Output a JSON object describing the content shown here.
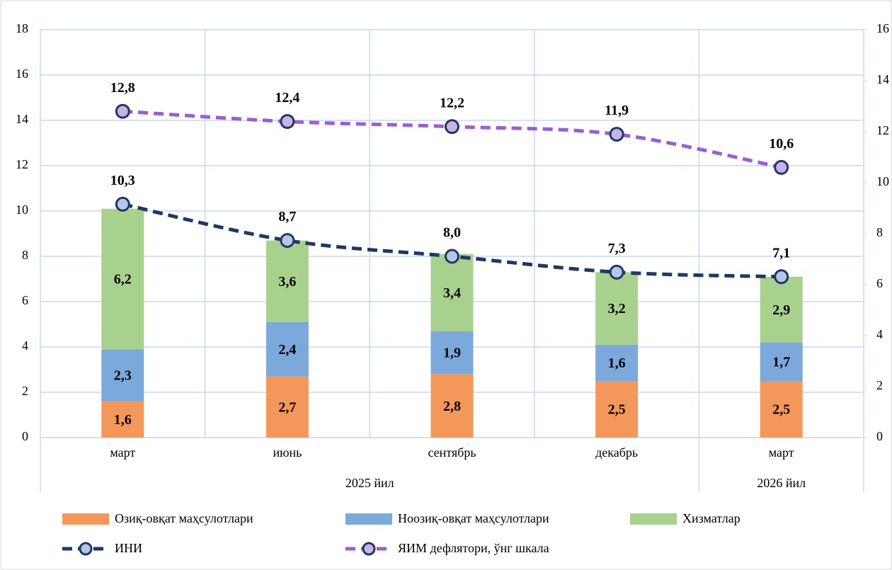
{
  "chart_data": {
    "type": "bar_line_combo",
    "stacked": true,
    "categories": [
      "март",
      "июнь",
      "сентябрь",
      "декабрь",
      "март"
    ],
    "groups": [
      {
        "label": "2025 йил",
        "from": 0,
        "to": 3
      },
      {
        "label": "2026 йил",
        "from": 4,
        "to": 4
      }
    ],
    "series": [
      {
        "name": "Озиқ-овқат маҳсулотлари",
        "type": "bar",
        "color": "#f4975a",
        "values": [
          1.6,
          2.7,
          2.8,
          2.5,
          2.5
        ],
        "value_labels": [
          "1,6",
          "2,7",
          "2,8",
          "2,5",
          "2,5"
        ]
      },
      {
        "name": "Ноозиқ-овқат маҳсулотлари",
        "type": "bar",
        "color": "#7ba9dc",
        "values": [
          2.3,
          2.4,
          1.9,
          1.6,
          1.7
        ],
        "value_labels": [
          "2,3",
          "2,4",
          "1,9",
          "1,6",
          "1,7"
        ]
      },
      {
        "name": "Хизматлар",
        "type": "bar",
        "color": "#a9d18e",
        "values": [
          6.2,
          3.6,
          3.4,
          3.2,
          2.9
        ],
        "value_labels": [
          "6,2",
          "3,6",
          "3,4",
          "3,2",
          "2,9"
        ]
      },
      {
        "name": "ИНИ",
        "type": "line",
        "color": "#1f3864",
        "marker_color": "#b4c7e7",
        "values": [
          10.3,
          8.7,
          8.0,
          7.3,
          7.1
        ],
        "value_labels": [
          "10,3",
          "8,7",
          "8,0",
          "7,3",
          "7,1"
        ]
      },
      {
        "name": "ЯИМ дефлятори, ўнг шкала",
        "type": "line",
        "axis": "y2",
        "color": "#9b5fd0",
        "marker_color": "#c9b3e6",
        "values": [
          12.8,
          12.4,
          12.2,
          11.9,
          10.6
        ],
        "value_labels": [
          "12,8",
          "12,4",
          "12,2",
          "11,9",
          "10,6"
        ]
      }
    ],
    "ylim": [
      0,
      18
    ],
    "yticks": [
      0,
      2,
      4,
      6,
      8,
      10,
      12,
      14,
      16,
      18
    ],
    "y2lim": [
      0,
      16
    ],
    "y2ticks": [
      0,
      2,
      4,
      6,
      8,
      10,
      12,
      14,
      16
    ],
    "grid": true
  }
}
